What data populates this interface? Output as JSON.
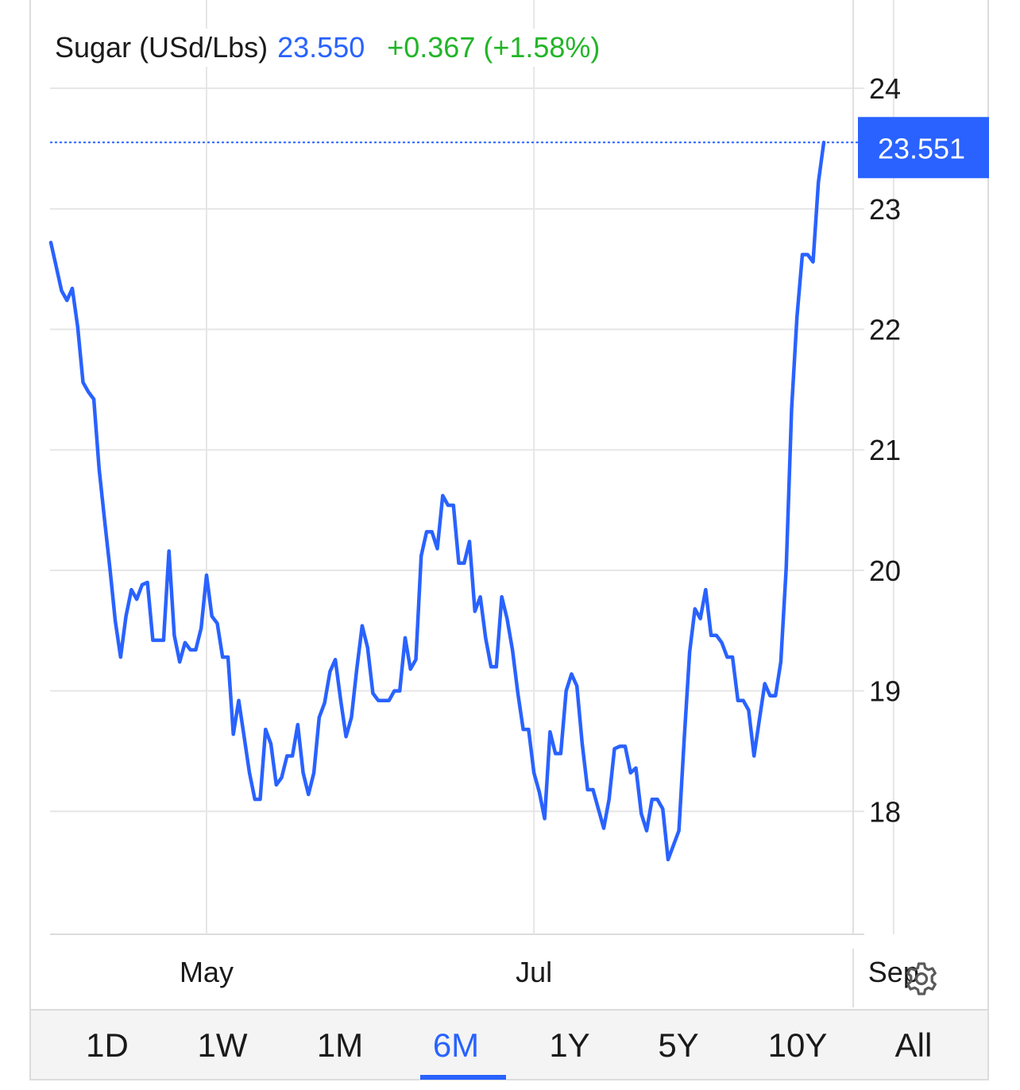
{
  "header": {
    "name": "Sugar (USd/Lbs)",
    "price": "23.550",
    "change": "+0.367 (+1.58%)"
  },
  "colors": {
    "line": "#2962ff",
    "price": "#2962ff",
    "change": "#22b528",
    "grid": "#e6e6e6",
    "axis_text": "#1a1a1a"
  },
  "chart_data": {
    "type": "line",
    "y_ticks": [
      18,
      19,
      20,
      21,
      22,
      23,
      24
    ],
    "ylim": [
      16.98,
      24.1
    ],
    "x_ticks": [
      "May",
      "Jul",
      "Sep"
    ],
    "x_tick_index": [
      29,
      90,
      157
    ],
    "grid": true,
    "last_value_label": "23.551",
    "last_value": 23.551,
    "series": [
      {
        "values": [
          22.72,
          22.52,
          22.32,
          22.24,
          22.34,
          22.02,
          21.56,
          21.48,
          21.42,
          20.84,
          20.42,
          20.02,
          19.58,
          19.28,
          19.62,
          19.84,
          19.76,
          19.88,
          19.9,
          19.42,
          19.42,
          19.42,
          20.16,
          19.46,
          19.24,
          19.4,
          19.34,
          19.34,
          19.52,
          19.96,
          19.62,
          19.56,
          19.28,
          19.28,
          18.64,
          18.92,
          18.62,
          18.32,
          18.1,
          18.1,
          18.68,
          18.56,
          18.22,
          18.28,
          18.46,
          18.46,
          18.72,
          18.32,
          18.14,
          18.32,
          18.78,
          18.9,
          19.16,
          19.26,
          18.92,
          18.62,
          18.78,
          19.18,
          19.54,
          19.36,
          18.98,
          18.92,
          18.92,
          18.92,
          19.0,
          19.0,
          19.44,
          19.18,
          19.26,
          20.12,
          20.32,
          20.32,
          20.18,
          20.62,
          20.54,
          20.54,
          20.06,
          20.06,
          20.24,
          19.66,
          19.78,
          19.44,
          19.2,
          19.2,
          19.78,
          19.6,
          19.34,
          18.98,
          18.68,
          18.68,
          18.32,
          18.16,
          17.94,
          18.66,
          18.48,
          18.48,
          19.0,
          19.14,
          19.04,
          18.56,
          18.18,
          18.18,
          18.02,
          17.86,
          18.1,
          18.52,
          18.54,
          18.54,
          18.32,
          18.36,
          17.98,
          17.84,
          18.1,
          18.1,
          18.02,
          17.6,
          17.72,
          17.84,
          18.6,
          19.32,
          19.68,
          19.6,
          19.84,
          19.46,
          19.46,
          19.4,
          19.28,
          19.28,
          18.92,
          18.92,
          18.84,
          18.46,
          18.76,
          19.06,
          18.96,
          18.96,
          19.24,
          20.02,
          21.34,
          22.1,
          22.62,
          22.62,
          22.56,
          23.22,
          23.551
        ]
      }
    ]
  },
  "tabs": [
    "1D",
    "1W",
    "1M",
    "6M",
    "1Y",
    "5Y",
    "10Y",
    "All"
  ],
  "active_tab": "6M",
  "settings_icon": "gear-icon"
}
